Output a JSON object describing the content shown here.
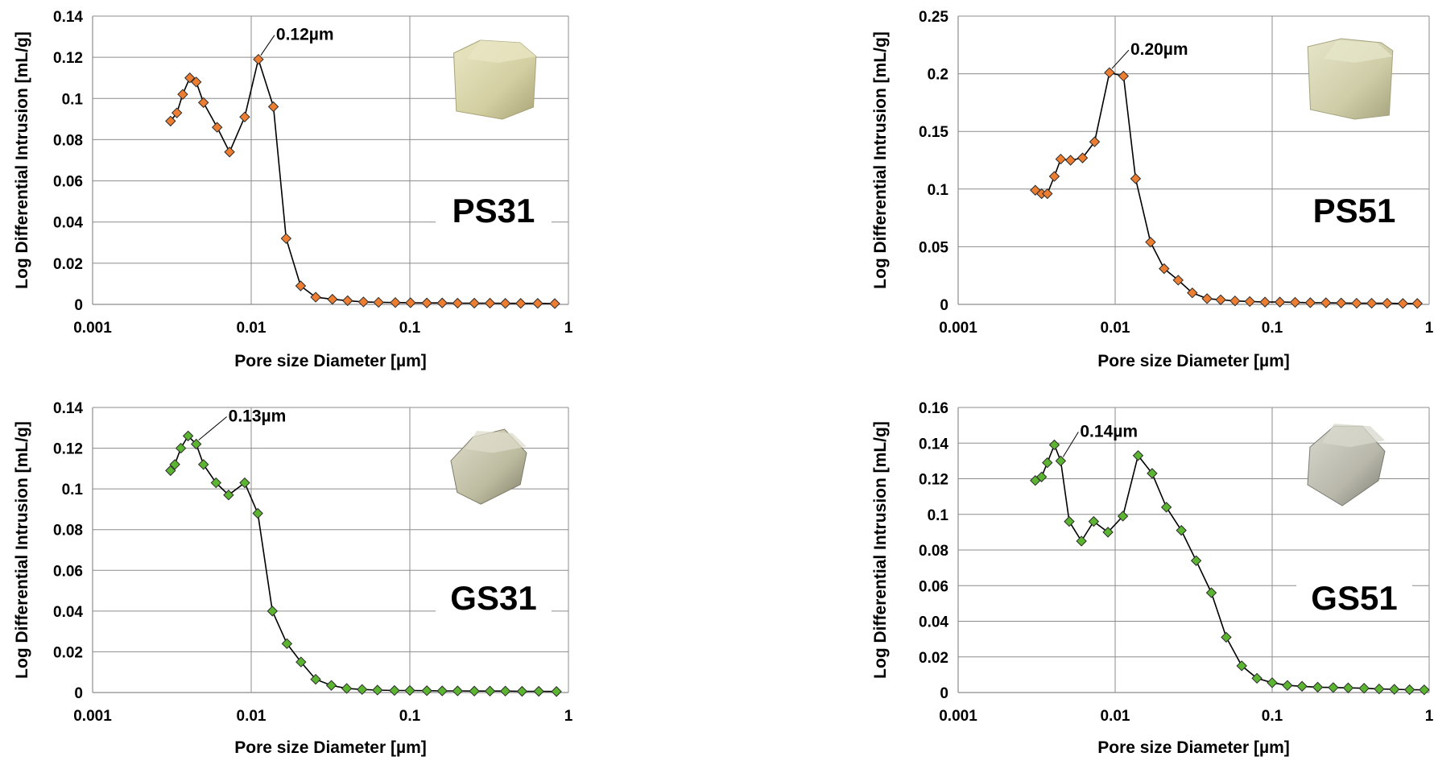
{
  "chart_data": [
    {
      "type": "scatter",
      "sample": "PS31",
      "xlabel": "Pore size Diameter [µm]",
      "ylabel": "Log Differential Intrusion [mL/g]",
      "x_scale": "log",
      "xlim": [
        0.001,
        1
      ],
      "ylim": [
        0,
        0.14
      ],
      "x_ticks": [
        0.001,
        0.01,
        0.1,
        1
      ],
      "x_tick_labels": [
        "0.001",
        "0.01",
        "0.1",
        "1"
      ],
      "y_ticks": [
        0,
        0.02,
        0.04,
        0.06,
        0.08,
        0.1,
        0.12,
        0.14
      ],
      "y_tick_labels": [
        "0",
        "0.02",
        "0.04",
        "0.06",
        "0.08",
        "0.1",
        "0.12",
        "0.14"
      ],
      "grid": true,
      "marker_color": "#ED7D31",
      "peak_label": "0.12µm",
      "peak_index": 9,
      "photo_colors": {
        "light": "#e9e6c4",
        "mid": "#d3cfa2",
        "dark": "#a8a377"
      },
      "x": [
        0.0031,
        0.0034,
        0.0037,
        0.0041,
        0.0045,
        0.005,
        0.0061,
        0.0073,
        0.0091,
        0.0111,
        0.0138,
        0.0166,
        0.0205,
        0.0255,
        0.0325,
        0.0405,
        0.051,
        0.0635,
        0.081,
        0.101,
        0.128,
        0.16,
        0.2,
        0.255,
        0.32,
        0.4,
        0.5,
        0.64,
        0.82
      ],
      "y": [
        0.089,
        0.093,
        0.102,
        0.11,
        0.108,
        0.098,
        0.086,
        0.074,
        0.091,
        0.119,
        0.096,
        0.032,
        0.009,
        0.0035,
        0.0025,
        0.0018,
        0.0012,
        0.001,
        0.0009,
        0.0008,
        0.0007,
        0.0007,
        0.0006,
        0.0006,
        0.0006,
        0.0005,
        0.0005,
        0.0005,
        0.0004
      ]
    },
    {
      "type": "scatter",
      "sample": "PS51",
      "xlabel": "Pore size Diameter [µm]",
      "ylabel": "Log Differential Intrusion [mL/g]",
      "x_scale": "log",
      "xlim": [
        0.001,
        1
      ],
      "ylim": [
        0,
        0.25
      ],
      "x_ticks": [
        0.001,
        0.01,
        0.1,
        1
      ],
      "x_tick_labels": [
        "0.001",
        "0.01",
        "0.1",
        "1"
      ],
      "y_ticks": [
        0,
        0.05,
        0.1,
        0.15,
        0.2,
        0.25
      ],
      "y_tick_labels": [
        "0",
        "0.05",
        "0.1",
        "0.15",
        "0.2",
        "0.25"
      ],
      "grid": true,
      "marker_color": "#ED7D31",
      "peak_label": "0.20µm",
      "peak_index": 8,
      "photo_colors": {
        "light": "#e6e5c9",
        "mid": "#cfcda8",
        "dark": "#a6a47e"
      },
      "x": [
        0.0031,
        0.0034,
        0.0037,
        0.0041,
        0.0045,
        0.0052,
        0.0062,
        0.0074,
        0.0092,
        0.0113,
        0.0135,
        0.0168,
        0.0205,
        0.0252,
        0.031,
        0.0385,
        0.047,
        0.058,
        0.072,
        0.09,
        0.112,
        0.14,
        0.175,
        0.22,
        0.275,
        0.345,
        0.43,
        0.54,
        0.68,
        0.84
      ],
      "y": [
        0.099,
        0.096,
        0.096,
        0.111,
        0.126,
        0.125,
        0.127,
        0.141,
        0.201,
        0.198,
        0.109,
        0.054,
        0.031,
        0.021,
        0.01,
        0.005,
        0.004,
        0.003,
        0.0025,
        0.002,
        0.002,
        0.0018,
        0.0015,
        0.0014,
        0.0012,
        0.001,
        0.001,
        0.001,
        0.0008,
        0.0008
      ]
    },
    {
      "type": "scatter",
      "sample": "GS31",
      "xlabel": "Pore size Diameter [µm]",
      "ylabel": "Log Differential Intrusion [mL/g]",
      "x_scale": "log",
      "xlim": [
        0.001,
        1
      ],
      "ylim": [
        0,
        0.14
      ],
      "x_ticks": [
        0.001,
        0.01,
        0.1,
        1
      ],
      "x_tick_labels": [
        "0.001",
        "0.01",
        "0.1",
        "1"
      ],
      "y_ticks": [
        0,
        0.02,
        0.04,
        0.06,
        0.08,
        0.1,
        0.12,
        0.14
      ],
      "y_tick_labels": [
        "0",
        "0.02",
        "0.04",
        "0.06",
        "0.08",
        "0.1",
        "0.12",
        "0.14"
      ],
      "grid": true,
      "marker_color": "#5CB531",
      "peak_label": "0.13µm",
      "peak_index": 4,
      "photo_colors": {
        "light": "#dedccb",
        "mid": "#bdbb9f",
        "dark": "#7e7c67"
      },
      "x": [
        0.0031,
        0.0033,
        0.0036,
        0.004,
        0.0045,
        0.005,
        0.006,
        0.0072,
        0.0091,
        0.011,
        0.0136,
        0.0168,
        0.0206,
        0.0255,
        0.032,
        0.04,
        0.05,
        0.0625,
        0.08,
        0.1,
        0.128,
        0.16,
        0.2,
        0.255,
        0.32,
        0.4,
        0.51,
        0.65,
        0.84
      ],
      "y": [
        0.109,
        0.112,
        0.12,
        0.126,
        0.122,
        0.112,
        0.103,
        0.097,
        0.103,
        0.088,
        0.04,
        0.024,
        0.015,
        0.0065,
        0.0035,
        0.002,
        0.0015,
        0.0012,
        0.001,
        0.001,
        0.0009,
        0.0008,
        0.0008,
        0.0007,
        0.0007,
        0.0007,
        0.0006,
        0.0006,
        0.0005
      ]
    },
    {
      "type": "scatter",
      "sample": "GS51",
      "xlabel": "Pore size Diameter [µm]",
      "ylabel": "Log Differential Intrusion [mL/g]",
      "x_scale": "log",
      "xlim": [
        0.001,
        1
      ],
      "ylim": [
        0,
        0.16
      ],
      "x_ticks": [
        0.001,
        0.01,
        0.1,
        1
      ],
      "x_tick_labels": [
        "0.001",
        "0.01",
        "0.1",
        "1"
      ],
      "y_ticks": [
        0,
        0.02,
        0.04,
        0.06,
        0.08,
        0.1,
        0.12,
        0.14,
        0.16
      ],
      "y_tick_labels": [
        "0",
        "0.02",
        "0.04",
        "0.06",
        "0.08",
        "0.1",
        "0.12",
        "0.14",
        "0.16"
      ],
      "grid": true,
      "marker_color": "#5CB531",
      "peak_label": "0.14µm",
      "peak_index": 4,
      "photo_colors": {
        "light": "#d9d8ce",
        "mid": "#b8b7aa",
        "dark": "#7c7b72"
      },
      "x": [
        0.0031,
        0.0034,
        0.0037,
        0.0041,
        0.0045,
        0.0051,
        0.0061,
        0.0073,
        0.009,
        0.0112,
        0.014,
        0.0172,
        0.0212,
        0.0264,
        0.0328,
        0.041,
        0.051,
        0.064,
        0.08,
        0.1,
        0.125,
        0.155,
        0.195,
        0.245,
        0.305,
        0.385,
        0.48,
        0.6,
        0.75,
        0.93
      ],
      "y": [
        0.119,
        0.121,
        0.129,
        0.139,
        0.13,
        0.096,
        0.085,
        0.096,
        0.09,
        0.099,
        0.133,
        0.123,
        0.104,
        0.091,
        0.074,
        0.056,
        0.031,
        0.015,
        0.008,
        0.0055,
        0.004,
        0.0035,
        0.003,
        0.0028,
        0.0026,
        0.0024,
        0.002,
        0.0018,
        0.0016,
        0.0015
      ]
    }
  ]
}
